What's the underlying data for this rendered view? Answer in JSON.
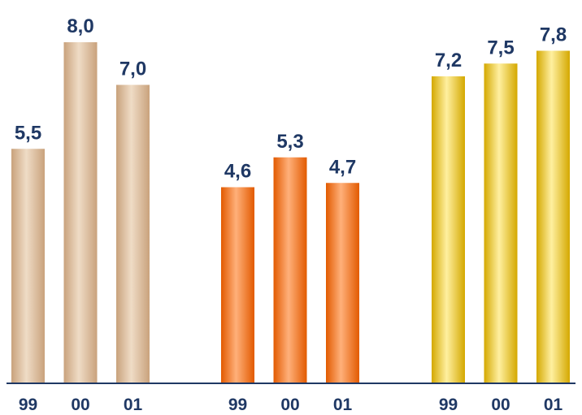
{
  "chart_data": {
    "type": "bar",
    "groups": [
      {
        "categories": [
          "99",
          "00",
          "01"
        ],
        "values": [
          5.5,
          8.0,
          7.0
        ],
        "labels": [
          "5,5",
          "8,0",
          "7,0"
        ],
        "color": "#c9a27c",
        "color_light": "#efdcc6"
      },
      {
        "categories": [
          "99",
          "00",
          "01"
        ],
        "values": [
          4.6,
          5.3,
          4.7
        ],
        "labels": [
          "4,6",
          "5,3",
          "4,7"
        ],
        "color": "#e25a00",
        "color_light": "#ffb07a"
      },
      {
        "categories": [
          "99",
          "00",
          "01"
        ],
        "values": [
          7.2,
          7.5,
          7.8
        ],
        "labels": [
          "7,2",
          "7,5",
          "7,8"
        ],
        "color": "#d4a800",
        "color_light": "#fff0a0"
      }
    ],
    "ylim": [
      0,
      8.0
    ],
    "label_color": "#1f3864",
    "axis_color": "#1f3864"
  }
}
